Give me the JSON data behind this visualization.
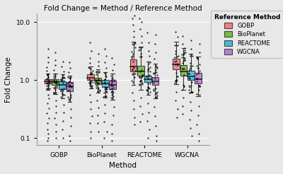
{
  "title": "Fold Change = Method / Reference Method",
  "xlabel": "Method",
  "ylabel": "Fold Change",
  "bg_color": "#E8E8E8",
  "grid_color": "white",
  "methods": [
    "GOBP",
    "BioPlanet",
    "REACTOME",
    "WGCNA"
  ],
  "ref_methods": [
    "GOBP",
    "BioPlanet",
    "REACTOME",
    "WGCNA"
  ],
  "colors": {
    "GOBP": "#F08080",
    "BioPlanet": "#7CB947",
    "REACTOME": "#40BCD8",
    "WGCNA": "#B87FD4"
  },
  "box_data": {
    "GOBP": {
      "GOBP": {
        "q1": 0.88,
        "med": 0.96,
        "q3": 1.04,
        "whisk_lo": 0.68,
        "whisk_hi": 1.28,
        "outliers_lo": [
          0.55,
          0.48,
          0.4,
          0.33,
          0.27,
          0.22,
          0.18,
          0.14,
          0.12,
          0.1,
          0.09
        ],
        "outliers_hi": [
          1.45,
          1.65,
          2.0,
          2.5,
          3.5
        ]
      },
      "BioPlanet": {
        "q1": 0.82,
        "med": 0.93,
        "q3": 1.02,
        "whisk_lo": 0.58,
        "whisk_hi": 1.3,
        "outliers_lo": [
          0.45,
          0.36,
          0.28,
          0.22,
          0.17,
          0.13,
          0.1
        ],
        "outliers_hi": [
          1.5,
          1.8,
          2.2,
          3.0
        ]
      },
      "REACTOME": {
        "q1": 0.7,
        "med": 0.83,
        "q3": 0.96,
        "whisk_lo": 0.48,
        "whisk_hi": 1.25,
        "outliers_lo": [
          0.38,
          0.28,
          0.2,
          0.14,
          0.1
        ],
        "outliers_hi": [
          1.4,
          1.7,
          2.1
        ]
      },
      "WGCNA": {
        "q1": 0.65,
        "med": 0.77,
        "q3": 0.92,
        "whisk_lo": 0.42,
        "whisk_hi": 1.18,
        "outliers_lo": [
          0.32,
          0.23,
          0.16,
          0.11,
          0.09
        ],
        "outliers_hi": [
          1.35,
          1.6,
          2.0
        ]
      }
    },
    "BioPlanet": {
      "GOBP": {
        "q1": 1.0,
        "med": 1.1,
        "q3": 1.24,
        "whisk_lo": 0.72,
        "whisk_hi": 1.7,
        "outliers_lo": [
          0.55,
          0.42,
          0.32,
          0.24,
          0.18,
          0.13,
          0.1
        ],
        "outliers_hi": [
          1.95,
          2.4,
          3.2,
          4.5
        ]
      },
      "BioPlanet": {
        "q1": 0.85,
        "med": 0.97,
        "q3": 1.1,
        "whisk_lo": 0.6,
        "whisk_hi": 1.52,
        "outliers_lo": [
          0.45,
          0.34,
          0.25,
          0.18,
          0.13
        ],
        "outliers_hi": [
          1.75,
          2.1,
          2.8
        ]
      },
      "REACTOME": {
        "q1": 0.75,
        "med": 0.87,
        "q3": 1.0,
        "whisk_lo": 0.5,
        "whisk_hi": 1.38,
        "outliers_lo": [
          0.38,
          0.27,
          0.19,
          0.13,
          0.1
        ],
        "outliers_hi": [
          1.6,
          2.0,
          2.6,
          3.5
        ]
      },
      "WGCNA": {
        "q1": 0.7,
        "med": 0.82,
        "q3": 0.97,
        "whisk_lo": 0.46,
        "whisk_hi": 1.3,
        "outliers_lo": [
          0.35,
          0.25,
          0.17,
          0.12,
          0.09
        ],
        "outliers_hi": [
          1.5,
          1.85,
          2.4
        ]
      }
    },
    "REACTOME": {
      "GOBP": {
        "q1": 1.42,
        "med": 1.7,
        "q3": 2.25,
        "whisk_lo": 0.82,
        "whisk_hi": 4.6,
        "outliers_lo": [
          0.6,
          0.44,
          0.32,
          0.23,
          0.17
        ],
        "outliers_hi": [
          5.5,
          7.0,
          9.0,
          11.5,
          13.0
        ]
      },
      "BioPlanet": {
        "q1": 1.18,
        "med": 1.4,
        "q3": 1.78,
        "whisk_lo": 0.68,
        "whisk_hi": 3.8,
        "outliers_lo": [
          0.5,
          0.36,
          0.26,
          0.19
        ],
        "outliers_hi": [
          4.5,
          5.8,
          7.5,
          10.0,
          11.5
        ]
      },
      "REACTOME": {
        "q1": 0.92,
        "med": 1.04,
        "q3": 1.18,
        "whisk_lo": 0.55,
        "whisk_hi": 2.1,
        "outliers_lo": [
          0.4,
          0.28,
          0.2,
          0.14,
          0.1
        ],
        "outliers_hi": [
          2.6,
          3.2,
          4.5,
          6.5
        ]
      },
      "WGCNA": {
        "q1": 0.82,
        "med": 0.95,
        "q3": 1.12,
        "whisk_lo": 0.48,
        "whisk_hi": 1.9,
        "outliers_lo": [
          0.35,
          0.24,
          0.16,
          0.11,
          0.09
        ],
        "outliers_hi": [
          2.3,
          3.0,
          4.2,
          6.0
        ]
      }
    },
    "WGCNA": {
      "GOBP": {
        "q1": 1.55,
        "med": 1.85,
        "q3": 2.35,
        "whisk_lo": 0.85,
        "whisk_hi": 4.6,
        "outliers_lo": [
          0.62,
          0.45,
          0.32,
          0.23
        ],
        "outliers_hi": [
          5.5,
          6.8
        ]
      },
      "BioPlanet": {
        "q1": 1.18,
        "med": 1.42,
        "q3": 1.8,
        "whisk_lo": 0.68,
        "whisk_hi": 3.6,
        "outliers_lo": [
          0.5,
          0.36,
          0.26
        ],
        "outliers_hi": [
          4.2,
          5.8
        ]
      },
      "REACTOME": {
        "q1": 1.0,
        "med": 1.15,
        "q3": 1.45,
        "whisk_lo": 0.6,
        "whisk_hi": 2.85,
        "outliers_lo": [
          0.42,
          0.3,
          0.21,
          0.15,
          0.11
        ],
        "outliers_hi": [
          3.5,
          4.8
        ]
      },
      "WGCNA": {
        "q1": 0.88,
        "med": 1.02,
        "q3": 1.32,
        "whisk_lo": 0.52,
        "whisk_hi": 2.55,
        "outliers_lo": [
          0.36,
          0.25,
          0.17,
          0.12,
          0.09
        ],
        "outliers_hi": [
          3.0,
          4.2
        ]
      }
    }
  },
  "ylim_log": [
    0.075,
    14.0
  ],
  "yticks": [
    0.1,
    1.0,
    10.0
  ],
  "ytick_labels": [
    "0.1",
    "1.0",
    "10.0"
  ],
  "legend_title": "Reference Method",
  "box_width": 0.16,
  "lw": 0.8
}
